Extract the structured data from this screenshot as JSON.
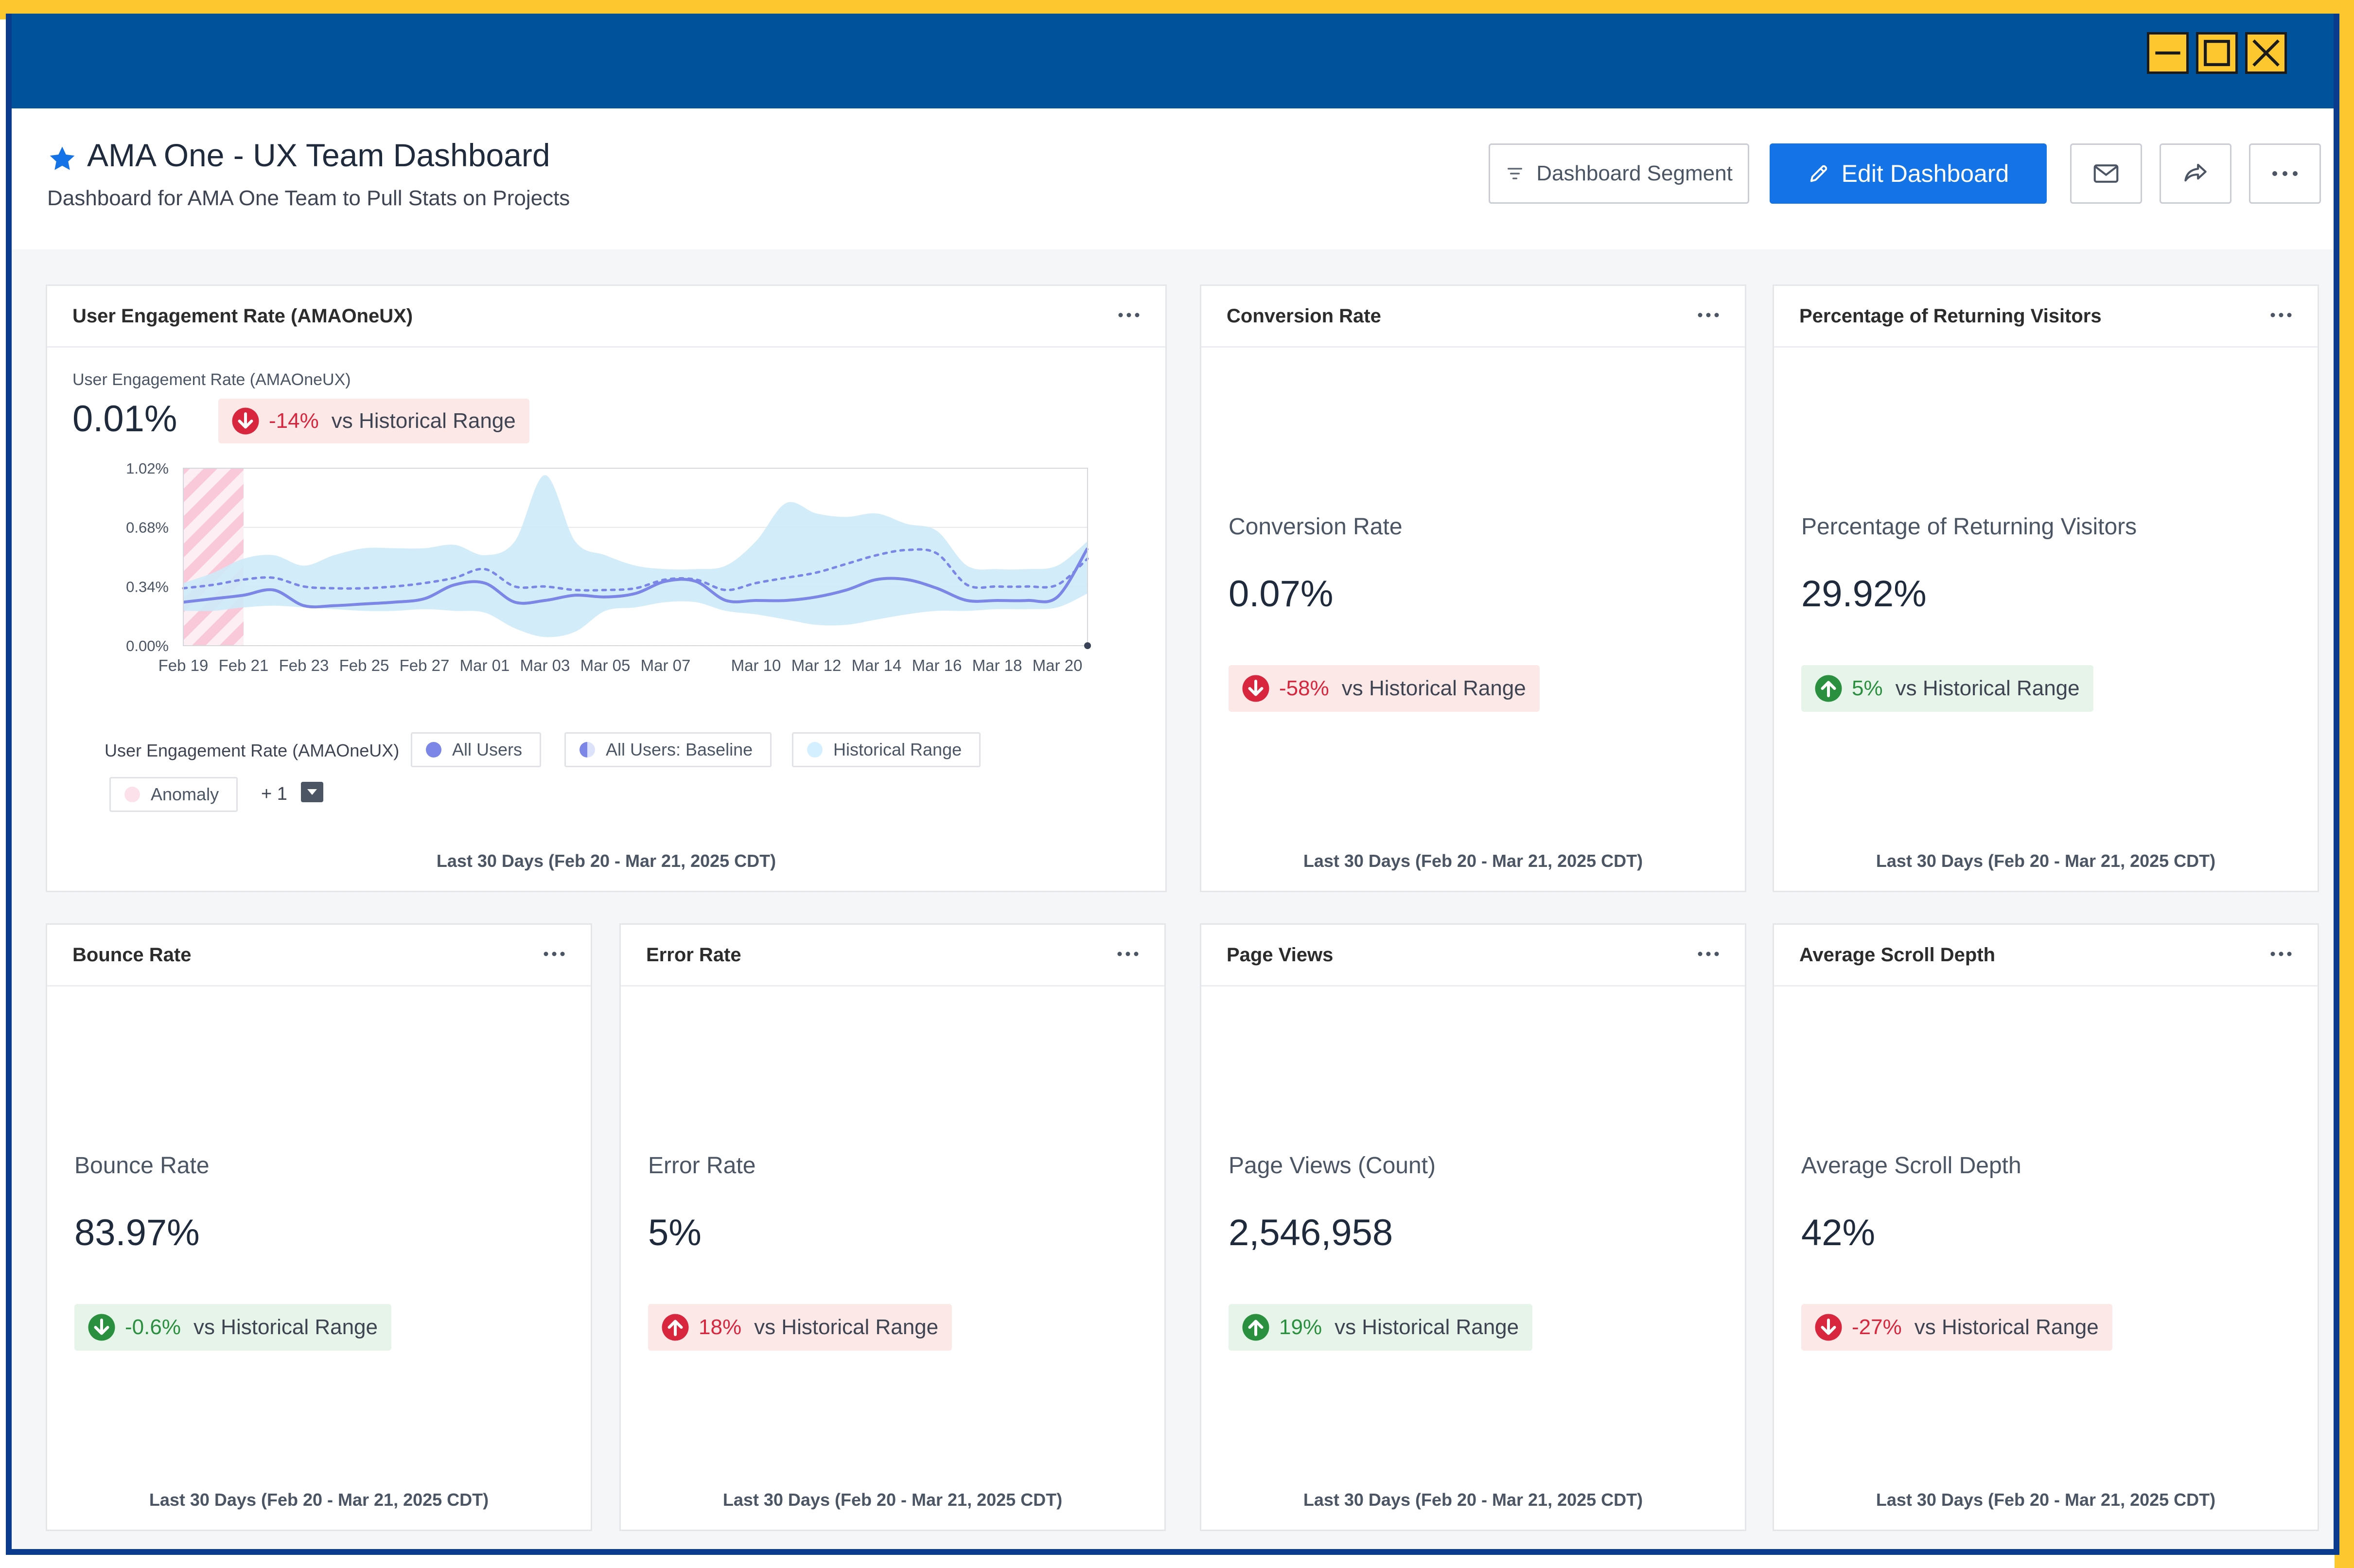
{
  "header": {
    "title": "AMA One - UX Team Dashboard",
    "subtitle": "Dashboard for AMA One Team to Pull Stats on Projects",
    "segment_label": "Dashboard Segment",
    "edit_label": "Edit Dashboard"
  },
  "colors": {
    "brand_blue": "#00529b",
    "accent_yellow": "#fdc82f",
    "primary_button": "#1473e6",
    "negative": "#d7263d",
    "positive": "#2a8f3f"
  },
  "engagement": {
    "title": "User Engagement Rate (AMAOneUX)",
    "sub_label": "User Engagement Rate (AMAOneUX)",
    "value": "0.01%",
    "change": "-14%",
    "change_suffix": "vs Historical Range",
    "direction": "down",
    "legend_title": "User Engagement Rate (AMAOneUX)",
    "legend": [
      "All Users",
      "All Users: Baseline",
      "Historical Range",
      "Anomaly"
    ],
    "legend_more": "+ 1",
    "footer": "Last 30 Days (Feb 20 - Mar 21, 2025 CDT)"
  },
  "chart_data": {
    "type": "line",
    "x": [
      "Feb 19",
      "Feb 20",
      "Feb 21",
      "Feb 22",
      "Feb 23",
      "Feb 24",
      "Feb 25",
      "Feb 26",
      "Feb 27",
      "Feb 28",
      "Mar 01",
      "Mar 02",
      "Mar 03",
      "Mar 04",
      "Mar 05",
      "Mar 06",
      "Mar 07",
      "Mar 08",
      "Mar 09",
      "Mar 10",
      "Mar 11",
      "Mar 12",
      "Mar 13",
      "Mar 14",
      "Mar 15",
      "Mar 16",
      "Mar 17",
      "Mar 18",
      "Mar 19",
      "Mar 20",
      "Mar 21"
    ],
    "x_tick_labels": [
      "Feb 19",
      "Feb 21",
      "Feb 23",
      "Feb 25",
      "Feb 27",
      "Mar 01",
      "Mar 03",
      "Mar 05",
      "Mar 07",
      "Mar 10",
      "Mar 12",
      "Mar 14",
      "Mar 16",
      "Mar 18",
      "Mar 20"
    ],
    "y_tick_labels": [
      "1.02%",
      "0.68%",
      "0.34%",
      "0.00%"
    ],
    "y_ticks": [
      1.02,
      0.68,
      0.34,
      0.0
    ],
    "ylim": [
      0,
      1.02
    ],
    "series": [
      {
        "name": "All Users",
        "color": "#7b86e6",
        "values": [
          0.25,
          0.27,
          0.29,
          0.32,
          0.23,
          0.23,
          0.24,
          0.25,
          0.27,
          0.35,
          0.36,
          0.25,
          0.26,
          0.29,
          0.28,
          0.3,
          0.37,
          0.37,
          0.26,
          0.26,
          0.26,
          0.28,
          0.32,
          0.38,
          0.38,
          0.33,
          0.26,
          0.26,
          0.26,
          0.28,
          0.56
        ]
      },
      {
        "name": "All Users: Baseline",
        "color": "#7b86e6",
        "values": [
          0.33,
          0.35,
          0.38,
          0.39,
          0.34,
          0.33,
          0.33,
          0.34,
          0.36,
          0.39,
          0.44,
          0.34,
          0.34,
          0.32,
          0.32,
          0.33,
          0.38,
          0.38,
          0.32,
          0.36,
          0.39,
          0.42,
          0.47,
          0.52,
          0.55,
          0.53,
          0.35,
          0.34,
          0.34,
          0.35,
          0.5
        ]
      },
      {
        "name": "Historical Range",
        "color": "#cdeaf8",
        "lower": [
          0.2,
          0.2,
          0.22,
          0.23,
          0.22,
          0.21,
          0.2,
          0.2,
          0.21,
          0.2,
          0.19,
          0.1,
          0.05,
          0.08,
          0.2,
          0.22,
          0.25,
          0.25,
          0.2,
          0.18,
          0.15,
          0.12,
          0.12,
          0.15,
          0.18,
          0.2,
          0.2,
          0.21,
          0.21,
          0.22,
          0.3
        ],
        "upper": [
          0.36,
          0.42,
          0.5,
          0.52,
          0.46,
          0.52,
          0.56,
          0.56,
          0.56,
          0.58,
          0.52,
          0.6,
          0.98,
          0.6,
          0.52,
          0.46,
          0.44,
          0.44,
          0.46,
          0.6,
          0.82,
          0.76,
          0.74,
          0.76,
          0.7,
          0.66,
          0.46,
          0.44,
          0.44,
          0.46,
          0.6
        ]
      }
    ],
    "anomaly_range": [
      "Feb 19",
      "Feb 21"
    ],
    "grid": true
  },
  "cards": [
    {
      "title": "Conversion Rate",
      "label": "Conversion Rate",
      "value": "0.07%",
      "change": "-58%",
      "direction": "down",
      "tone": "red",
      "change_suffix": "vs Historical Range",
      "footer": "Last 30 Days (Feb 20 - Mar 21, 2025 CDT)"
    },
    {
      "title": "Percentage of Returning Visitors",
      "label": "Percentage of Returning Visitors",
      "value": "29.92%",
      "change": "5%",
      "direction": "up",
      "tone": "green",
      "change_suffix": "vs Historical Range",
      "footer": "Last 30 Days (Feb 20 - Mar 21, 2025 CDT)"
    },
    {
      "title": "Bounce Rate",
      "label": "Bounce Rate",
      "value": "83.97%",
      "change": "-0.6%",
      "direction": "down",
      "tone": "green",
      "change_suffix": "vs Historical Range",
      "footer": "Last 30 Days (Feb 20 - Mar 21, 2025 CDT)"
    },
    {
      "title": "Error Rate",
      "label": "Error Rate",
      "value": "5%",
      "change": "18%",
      "direction": "up",
      "tone": "red",
      "change_suffix": "vs Historical Range",
      "footer": "Last 30 Days (Feb 20 - Mar 21, 2025 CDT)"
    },
    {
      "title": "Page Views",
      "label": "Page Views (Count)",
      "value": "2,546,958",
      "change": "19%",
      "direction": "up",
      "tone": "green",
      "change_suffix": "vs Historical Range",
      "footer": "Last 30 Days (Feb 20 - Mar 21, 2025 CDT)"
    },
    {
      "title": "Average Scroll Depth",
      "label": "Average Scroll Depth",
      "value": "42%",
      "change": "-27%",
      "direction": "down",
      "tone": "red",
      "change_suffix": "vs Historical Range",
      "footer": "Last 30 Days (Feb 20 - Mar 21, 2025 CDT)"
    }
  ]
}
